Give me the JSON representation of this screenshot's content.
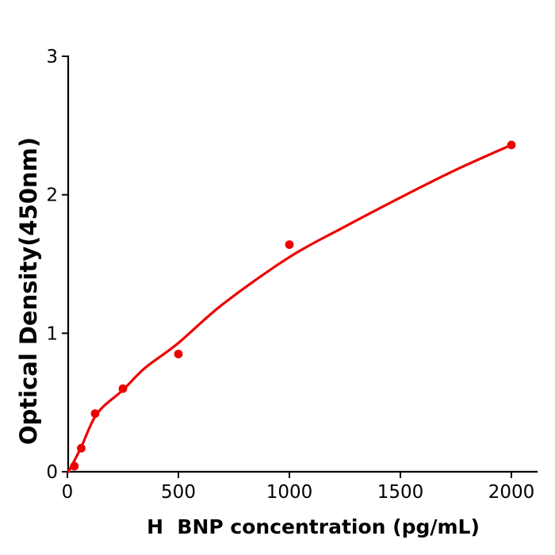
{
  "figure": {
    "background_color": "#ffffff",
    "axis_color": "#000000",
    "accent_color": "#ed0000"
  },
  "chart_data": {
    "type": "scatter",
    "title": "",
    "xlabel": "H  BNP concentration (pg/mL)",
    "ylabel": "Optical Density(450nm)",
    "xlim": [
      0,
      2120
    ],
    "ylim": [
      0,
      3
    ],
    "x_ticks": [
      0,
      500,
      1000,
      1500,
      2000
    ],
    "y_ticks": [
      0,
      1,
      2,
      3
    ],
    "grid": false,
    "legend": "none",
    "series": [
      {
        "name": "standard-points",
        "type": "scatter",
        "color": "#ed0000",
        "x": [
          31.25,
          62.5,
          125,
          250,
          500,
          1000,
          2000
        ],
        "y": [
          0.04,
          0.17,
          0.42,
          0.6,
          0.85,
          1.64,
          2.36
        ]
      },
      {
        "name": "fit-curve",
        "type": "line",
        "color": "#ed0000",
        "x": [
          5,
          60,
          134,
          250,
          350,
          500,
          700,
          1000,
          1250,
          1500,
          1750,
          2000
        ],
        "y": [
          0.0,
          0.17,
          0.42,
          0.59,
          0.75,
          0.93,
          1.21,
          1.55,
          1.77,
          1.98,
          2.18,
          2.36
        ]
      }
    ]
  }
}
